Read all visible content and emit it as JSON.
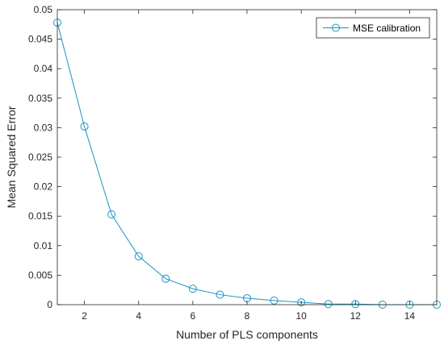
{
  "chart_data": {
    "type": "line",
    "xlabel": "Number of PLS components",
    "ylabel": "Mean Squared Error",
    "xlim": [
      1,
      15
    ],
    "ylim": [
      0,
      0.05
    ],
    "xticks": [
      2,
      4,
      6,
      8,
      10,
      12,
      14
    ],
    "xtick_labels": [
      "2",
      "4",
      "6",
      "8",
      "10",
      "12",
      "14"
    ],
    "yticks": [
      0,
      0.005,
      0.01,
      0.015,
      0.02,
      0.025,
      0.03,
      0.035,
      0.04,
      0.045,
      0.05
    ],
    "ytick_labels": [
      "0",
      "0.005",
      "0.01",
      "0.015",
      "0.02",
      "0.025",
      "0.03",
      "0.035",
      "0.04",
      "0.045",
      "0.05"
    ],
    "grid": false,
    "legend_position": "top-right",
    "series": [
      {
        "name": "MSE calibration",
        "color": "#1a94c6",
        "marker": "circle",
        "x": [
          1,
          2,
          3,
          4,
          5,
          6,
          7,
          8,
          9,
          10,
          11,
          12,
          13,
          14,
          15
        ],
        "y": [
          0.0478,
          0.0302,
          0.0153,
          0.0082,
          0.0044,
          0.0027,
          0.0017,
          0.0011,
          0.0007,
          0.0004,
          0.0001,
          0.0001,
          0.0,
          0.0,
          0.0
        ]
      }
    ]
  }
}
